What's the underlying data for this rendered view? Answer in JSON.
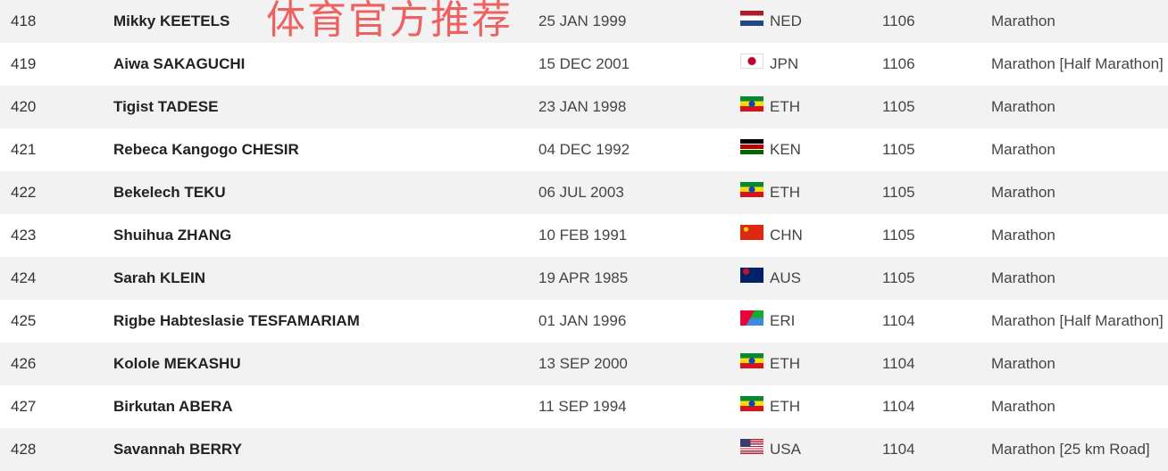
{
  "watermark": "体育官方推荐",
  "rows": [
    {
      "rank": "418",
      "name": "Mikky KEETELS",
      "dob": "25 JAN 1999",
      "country": "NED",
      "flag": "ned",
      "score": "1106",
      "event": "Marathon"
    },
    {
      "rank": "419",
      "name": "Aiwa SAKAGUCHI",
      "dob": "15 DEC 2001",
      "country": "JPN",
      "flag": "jpn",
      "score": "1106",
      "event": "Marathon [Half Marathon]"
    },
    {
      "rank": "420",
      "name": "Tigist TADESE",
      "dob": "23 JAN 1998",
      "country": "ETH",
      "flag": "eth",
      "score": "1105",
      "event": "Marathon"
    },
    {
      "rank": "421",
      "name": "Rebeca Kangogo CHESIR",
      "dob": "04 DEC 1992",
      "country": "KEN",
      "flag": "ken",
      "score": "1105",
      "event": "Marathon"
    },
    {
      "rank": "422",
      "name": "Bekelech TEKU",
      "dob": "06 JUL 2003",
      "country": "ETH",
      "flag": "eth",
      "score": "1105",
      "event": "Marathon"
    },
    {
      "rank": "423",
      "name": "Shuihua ZHANG",
      "dob": "10 FEB 1991",
      "country": "CHN",
      "flag": "chn",
      "score": "1105",
      "event": "Marathon"
    },
    {
      "rank": "424",
      "name": "Sarah KLEIN",
      "dob": "19 APR 1985",
      "country": "AUS",
      "flag": "aus",
      "score": "1105",
      "event": "Marathon"
    },
    {
      "rank": "425",
      "name": "Rigbe Habteslasie TESFAMARIAM",
      "dob": "01 JAN 1996",
      "country": "ERI",
      "flag": "eri",
      "score": "1104",
      "event": "Marathon [Half Marathon]"
    },
    {
      "rank": "426",
      "name": "Kolole MEKASHU",
      "dob": "13 SEP 2000",
      "country": "ETH",
      "flag": "eth",
      "score": "1104",
      "event": "Marathon"
    },
    {
      "rank": "427",
      "name": "Birkutan ABERA",
      "dob": "11 SEP 1994",
      "country": "ETH",
      "flag": "eth",
      "score": "1104",
      "event": "Marathon"
    },
    {
      "rank": "428",
      "name": "Savannah BERRY",
      "dob": "",
      "country": "USA",
      "flag": "usa",
      "score": "1104",
      "event": "Marathon [25 km Road]"
    }
  ]
}
